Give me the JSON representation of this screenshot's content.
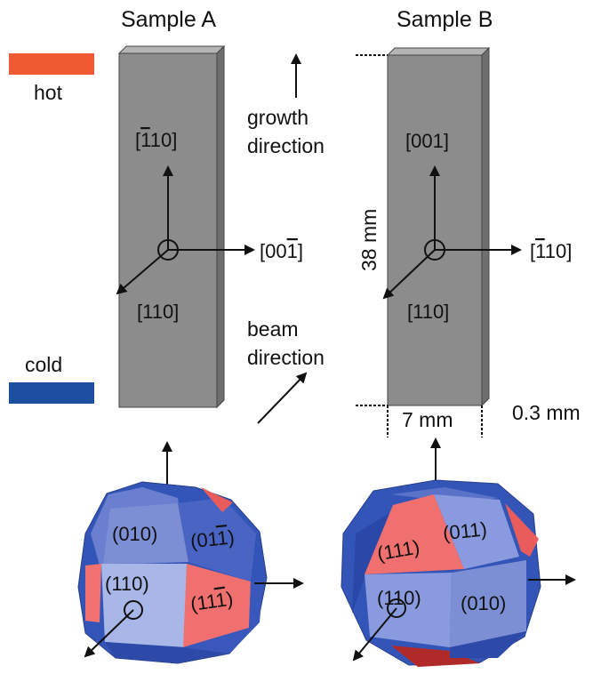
{
  "samples": {
    "a": {
      "title": "Sample A",
      "axis_up": {
        "pre": "[",
        "bar": "1",
        "post": "10]"
      },
      "axis_right": {
        "pre": "[00",
        "bar": "1",
        "post": "]"
      },
      "axis_diag": "[110]",
      "faces": {
        "top": "(010)",
        "top_right": {
          "pre": "(01",
          "bar": "1",
          "post": ")"
        },
        "front": "(110)",
        "right_red": {
          "pre": "(11",
          "bar": "1",
          "post": ")"
        }
      }
    },
    "b": {
      "title": "Sample B",
      "axis_up": "[001]",
      "axis_right": {
        "pre": "[",
        "bar": "1",
        "post": "10]"
      },
      "axis_diag": "[110]",
      "faces": {
        "left_red": "(111)",
        "top": "(011)",
        "front": "(110)",
        "right": "(010)"
      }
    }
  },
  "legend": {
    "hot": {
      "label": "hot",
      "color": "#f05a32"
    },
    "cold": {
      "label": "cold",
      "color": "#1c4fa0"
    }
  },
  "labels": {
    "growth": [
      "growth",
      "direction"
    ],
    "beam": [
      "beam",
      "direction"
    ],
    "height": "38 mm",
    "width": "7 mm",
    "thickness": "0.3 mm"
  },
  "colors": {
    "bar_front": "#8c8c8c",
    "bar_side": "#6e6e6e",
    "crystal_light": "#7d8fd4",
    "crystal_dark": "#3355b8",
    "crystal_red": "#f06a6a"
  }
}
